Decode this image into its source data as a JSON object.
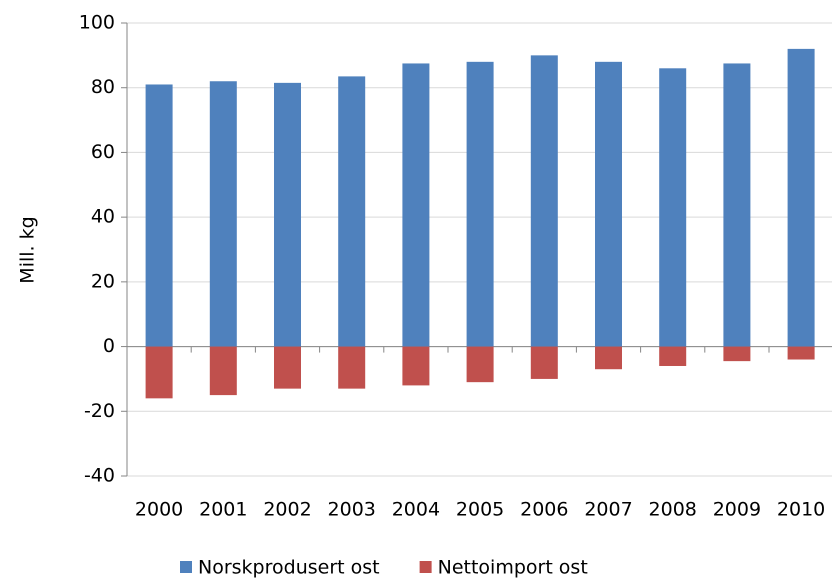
{
  "chart_data": {
    "type": "bar",
    "stacked": true,
    "y_label": "Mill. kg",
    "categories": [
      "2000",
      "2001",
      "2002",
      "2003",
      "2004",
      "2005",
      "2006",
      "2007",
      "2008",
      "2009",
      "2010"
    ],
    "series": [
      {
        "name": "Norskprodusert ost",
        "color": "#4f81bd",
        "values": [
          81,
          82,
          81.5,
          83.5,
          87.5,
          88,
          90,
          88,
          86,
          87.5,
          92
        ]
      },
      {
        "name": "Nettoimport ost",
        "color": "#c0504d",
        "values": [
          -16,
          -15,
          -13,
          -13,
          -12,
          -11,
          -10,
          -7,
          -6,
          -4.5,
          -4
        ]
      }
    ],
    "ylim": [
      -40,
      100
    ],
    "yticks": [
      -40,
      -20,
      0,
      20,
      40,
      60,
      80,
      100
    ],
    "grid": true,
    "legend": "bottom"
  }
}
